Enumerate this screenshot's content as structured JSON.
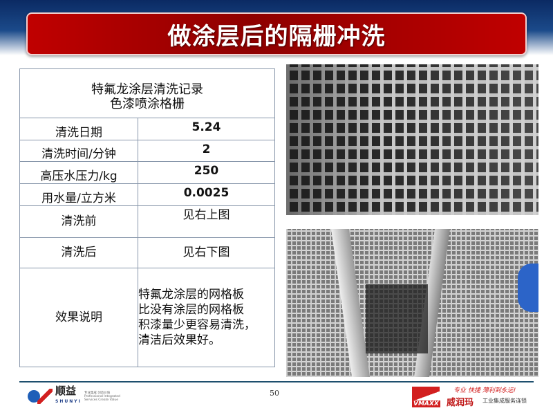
{
  "title": "做涂层后的隔栅冲洗",
  "table": {
    "header_line1": "特氟龙涂层清洗记录",
    "header_line2": "色漆喷涂格栅",
    "rows": [
      {
        "label": "清洗日期",
        "value": "5.24"
      },
      {
        "label": "清洗时间/分钟",
        "value": "2"
      },
      {
        "label": "高压水压力/kg",
        "value": "250"
      },
      {
        "label": "用水量/立方米",
        "value": "0.0025"
      },
      {
        "label": "清洗前",
        "value": "见右上图"
      },
      {
        "label": "清洗后",
        "value": "见右下图"
      }
    ],
    "effect_label": "效果说明",
    "effect_lines": [
      "特氟龙涂层的网格板",
      "比没有涂层的网格板",
      "积漆量少更容易清洗，",
      "清洁后效果好。"
    ]
  },
  "footer": {
    "page_number": "50",
    "left_logo": {
      "name": "顺益",
      "pinyin": "SHUNYI",
      "tagline_cn": "专业集成 创造价值",
      "tagline_en": "Professional Integrated Services Create Value"
    },
    "right_logo": {
      "mark": "VMAXX",
      "slogan": "专业 快捷 薄利到永远!",
      "name": "威润玛",
      "subtitle": "工业集成服务连锁"
    }
  },
  "colors": {
    "title_red": "#c00000",
    "header_blue": "#0b2a63",
    "table_border": "#8796aa"
  }
}
